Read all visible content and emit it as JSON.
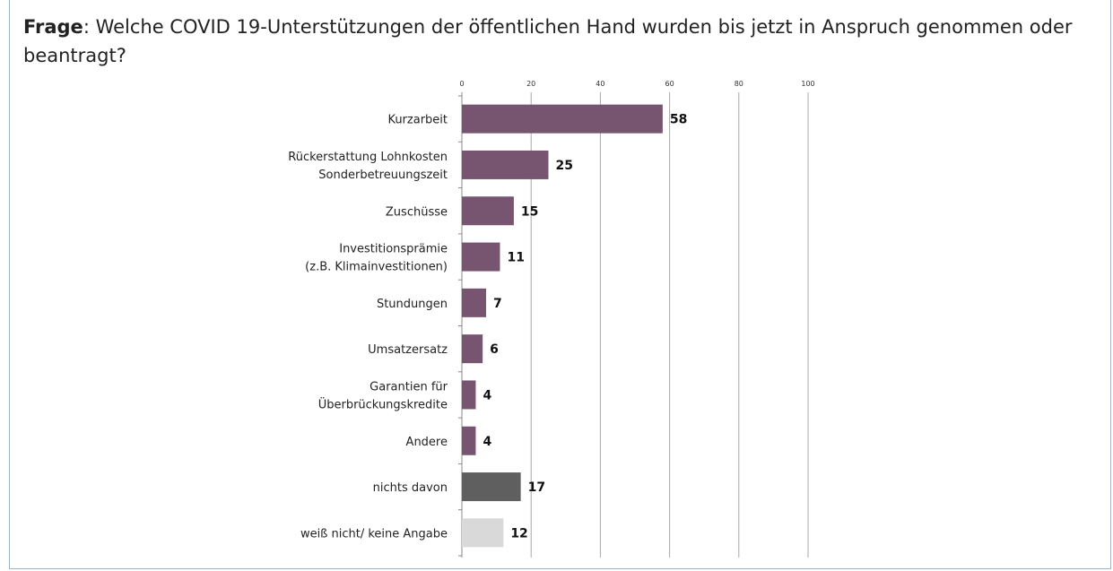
{
  "chart_data": {
    "type": "barh",
    "title": {
      "label": "Frage",
      "text": ": Welche COVID 19-Unterstützungen der öffentlichen Hand wurden bis jetzt in Anspruch genom­men oder beantragt?"
    },
    "categories": [
      "Kurzarbeit",
      "Rückerstattung Lohnkosten\nSonderbetreuungszeit",
      "Zuschüsse",
      "Investitionsprämie\n(z.B. Klimainvestitionen)",
      "Stundungen",
      "Umsatzersatz",
      "Garantien für\nÜberbrückungskredite",
      "Andere",
      "nichts davon",
      "weiß nicht/ keine Angabe"
    ],
    "values": [
      58,
      25,
      15,
      11,
      7,
      6,
      4,
      4,
      17,
      12
    ],
    "colors": [
      "#77546f",
      "#77546f",
      "#77546f",
      "#77546f",
      "#77546f",
      "#77546f",
      "#77546f",
      "#77546f",
      "#5f5f5f",
      "#d9d9d9"
    ],
    "xlim": [
      0,
      100
    ],
    "xticks": [
      0,
      20,
      40,
      60,
      80,
      100
    ],
    "grid": true
  }
}
